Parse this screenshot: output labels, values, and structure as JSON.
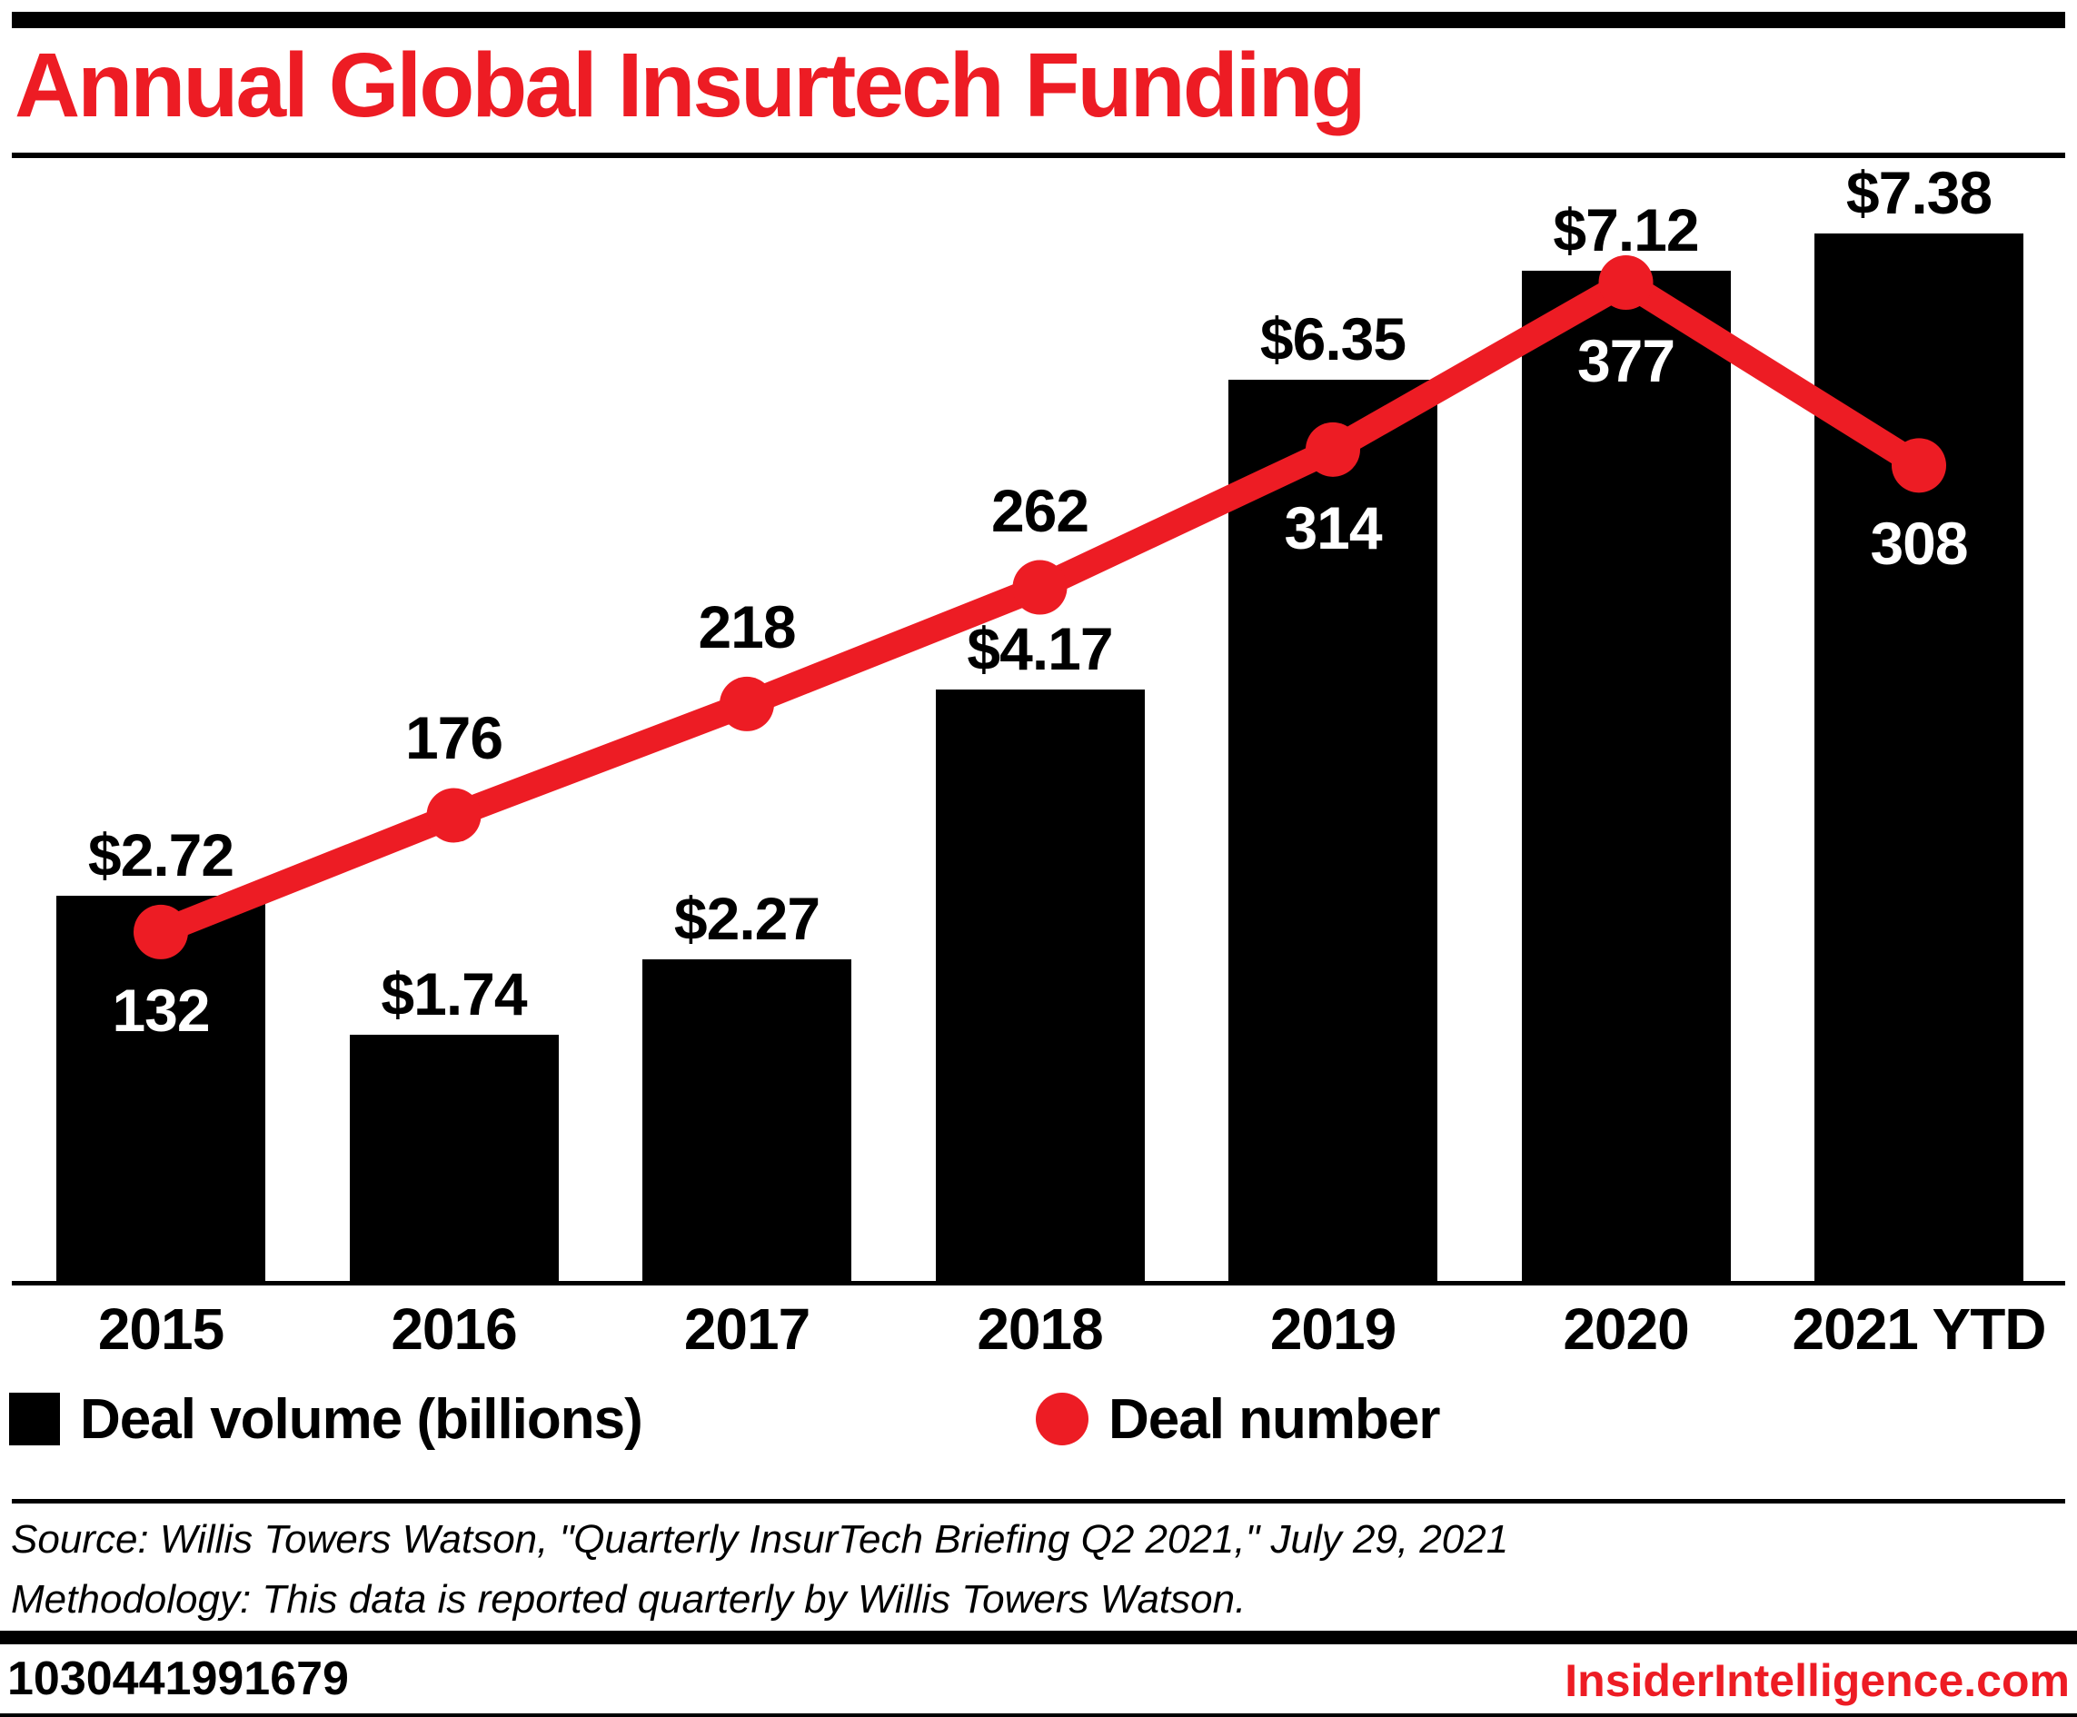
{
  "header": {
    "title": "Annual Global Insurtech Funding"
  },
  "chart_data": {
    "type": "bar",
    "subtype": "bar-line-combo",
    "categories": [
      "2015",
      "2016",
      "2017",
      "2018",
      "2019",
      "2020",
      "2021 YTD"
    ],
    "series": [
      {
        "name": "Deal volume (billions)",
        "type": "bar",
        "values": [
          2.72,
          1.74,
          2.27,
          4.17,
          6.35,
          7.12,
          7.38
        ],
        "labels": [
          "$2.72",
          "$1.74",
          "$2.27",
          "$4.17",
          "$6.35",
          "$7.12",
          "$7.38"
        ],
        "color": "#000000",
        "label_color": "#000000"
      },
      {
        "name": "Deal number",
        "type": "line",
        "values": [
          132,
          176,
          218,
          262,
          314,
          377,
          308
        ],
        "labels": [
          "132",
          "176",
          "218",
          "262",
          "314",
          "377",
          "308"
        ],
        "color": "#ed1c24",
        "label_positions": [
          "below",
          "above",
          "above",
          "above",
          "below",
          "below",
          "below"
        ],
        "label_color_above": "#000000",
        "label_color_below": "#ffffff"
      }
    ],
    "legend": [
      {
        "label": "Deal volume (billions)",
        "marker": "square",
        "color": "#000000"
      },
      {
        "label": "Deal number",
        "marker": "circle",
        "color": "#ed1c24"
      }
    ],
    "legend_position": "bottom",
    "grid": false,
    "ylim_bar": [
      0,
      7.38
    ],
    "ylim_line": [
      0,
      377
    ],
    "title": "Annual Global Insurtech Funding"
  },
  "footer": {
    "source_line1": "Source: Willis Towers Watson, \"Quarterly InsurTech Briefing Q2 2021,\" July 29, 2021",
    "source_line2": "Methodology: This data is reported quarterly by Willis Towers Watson.",
    "chart_id": "1030441991679",
    "brand": "InsiderIntelligence.com"
  },
  "colors": {
    "accent_red": "#ed1c24",
    "bar_black": "#000000",
    "label_white": "#ffffff",
    "background": "#ffffff"
  }
}
